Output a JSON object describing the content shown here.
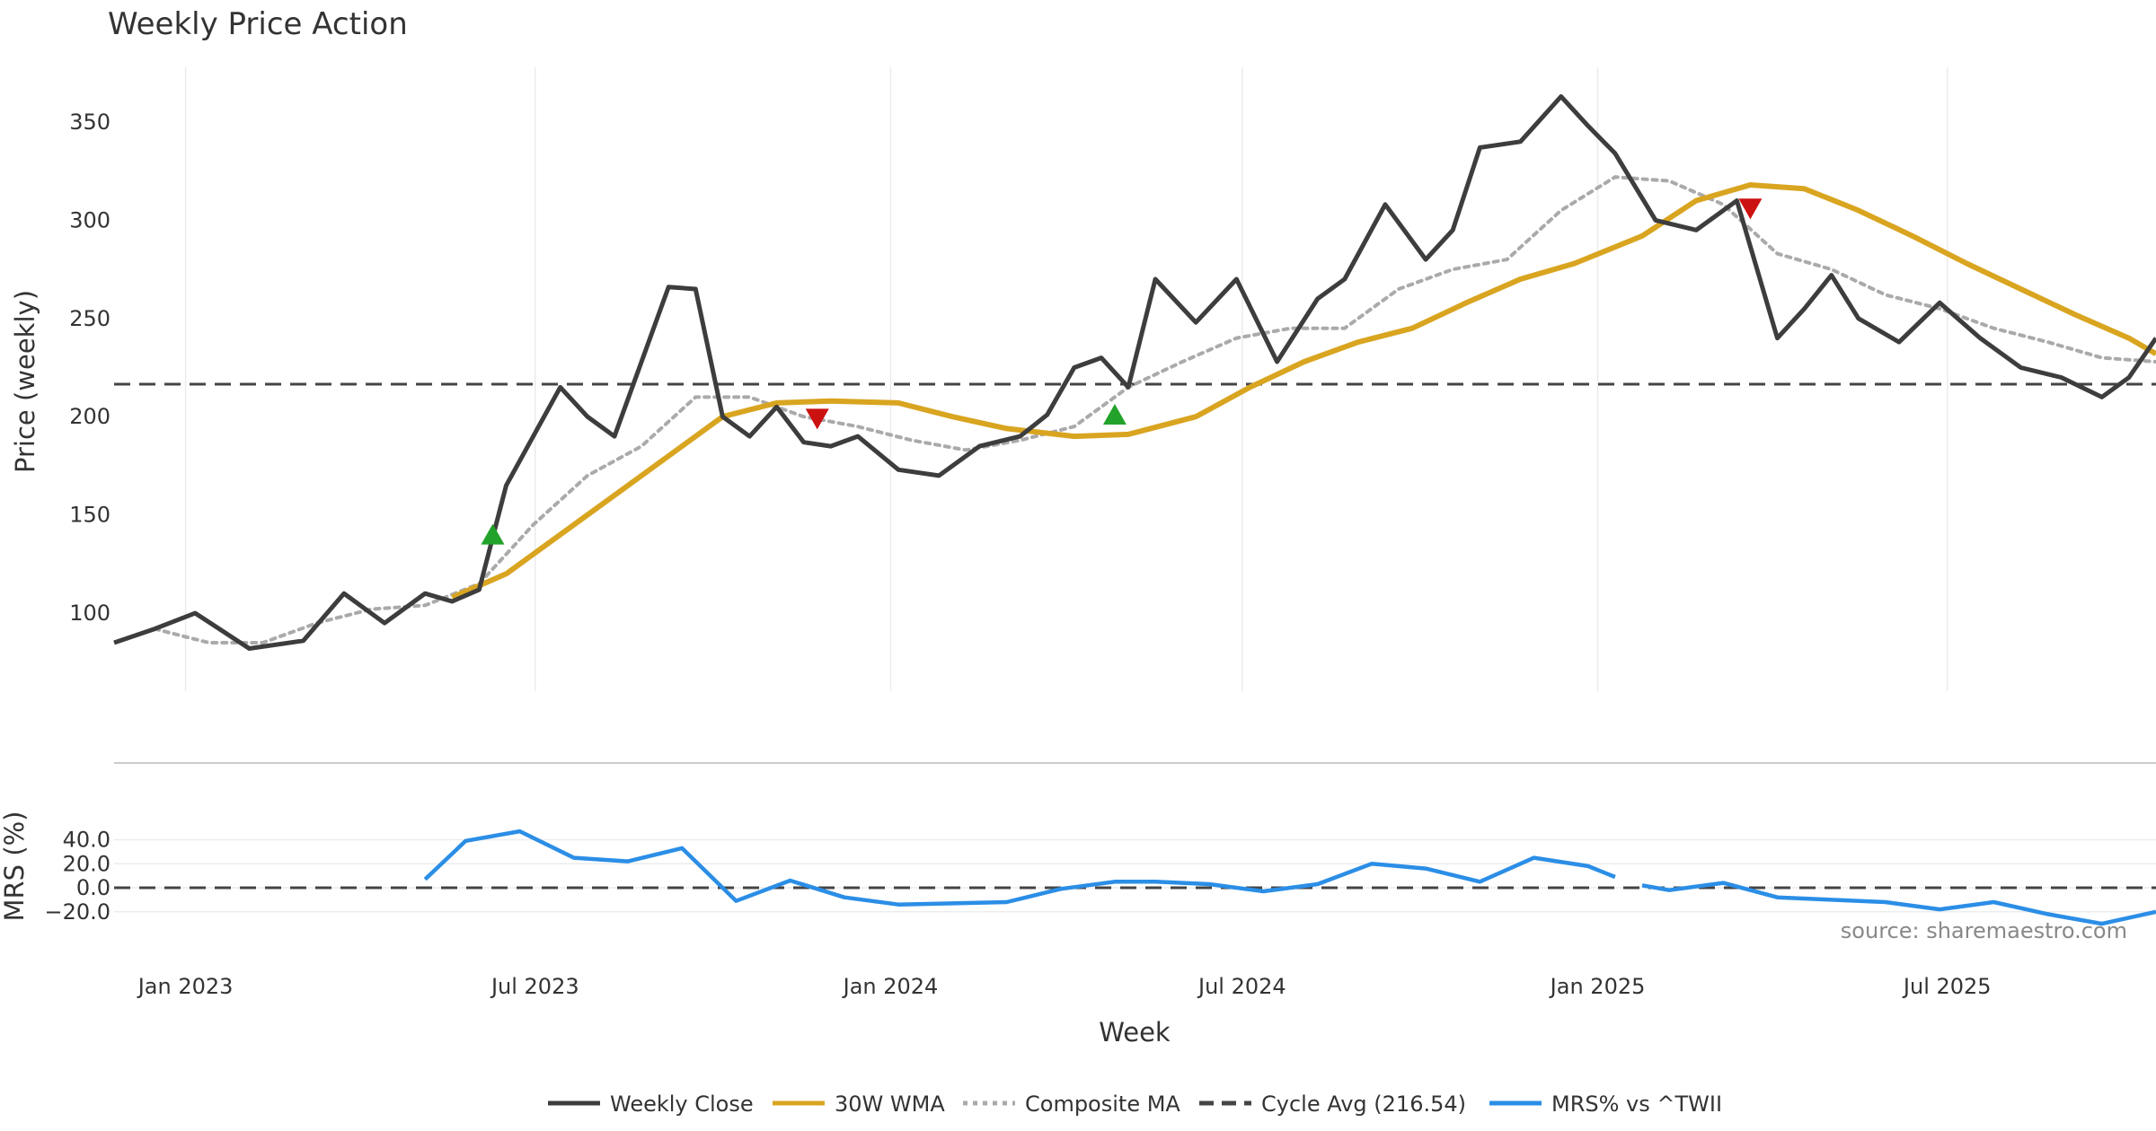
{
  "chart_data": {
    "type": "line",
    "title": "Weekly Price Action",
    "xlabel": "Week",
    "x_ticks": [
      "Jan 2023",
      "Jul 2023",
      "Jan 2024",
      "Jul 2024",
      "Jan 2025",
      "Jul 2025"
    ],
    "source": "source: sharemaestro.com",
    "price_panel": {
      "ylabel": "Price (weekly)",
      "ylim": [
        65,
        380
      ],
      "yticks": [
        100,
        150,
        200,
        250,
        300,
        350
      ],
      "grid": "vertical",
      "cycle_avg": 216.54,
      "series": [
        {
          "name": "Weekly Close",
          "color": "#3d3d3d",
          "style": "solid",
          "x": [
            "2022-11-25",
            "2022-12-16",
            "2023-01-06",
            "2023-02-03",
            "2023-03-03",
            "2023-03-24",
            "2023-04-14",
            "2023-05-05",
            "2023-05-19",
            "2023-06-02",
            "2023-06-16",
            "2023-06-30",
            "2023-07-14",
            "2023-07-28",
            "2023-08-11",
            "2023-08-25",
            "2023-09-08",
            "2023-09-22",
            "2023-10-06",
            "2023-10-20",
            "2023-11-03",
            "2023-11-17",
            "2023-12-01",
            "2023-12-15",
            "2024-01-05",
            "2024-01-26",
            "2024-02-16",
            "2024-03-08",
            "2024-03-22",
            "2024-04-05",
            "2024-04-19",
            "2024-05-03",
            "2024-05-17",
            "2024-06-07",
            "2024-06-28",
            "2024-07-19",
            "2024-08-09",
            "2024-08-23",
            "2024-09-13",
            "2024-10-04",
            "2024-10-18",
            "2024-11-01",
            "2024-11-22",
            "2024-12-13",
            "2024-12-27",
            "2025-01-10",
            "2025-01-31",
            "2025-02-21",
            "2025-03-14",
            "2025-04-04",
            "2025-04-18",
            "2025-05-02",
            "2025-05-16",
            "2025-06-06",
            "2025-06-27",
            "2025-07-18",
            "2025-08-08",
            "2025-08-29",
            "2025-09-19",
            "2025-10-03",
            "2025-10-17"
          ],
          "values": [
            85,
            92,
            100,
            82,
            86,
            110,
            95,
            110,
            106,
            112,
            165,
            190,
            215,
            200,
            190,
            228,
            266,
            265,
            200,
            190,
            205,
            187,
            185,
            190,
            173,
            170,
            185,
            190,
            201,
            225,
            230,
            215,
            270,
            248,
            270,
            228,
            260,
            270,
            308,
            280,
            295,
            337,
            340,
            363,
            348,
            334,
            300,
            295,
            310,
            240,
            255,
            272,
            250,
            238,
            258,
            240,
            225,
            220,
            210,
            220,
            240
          ]
        },
        {
          "name": "30W WMA",
          "color": "#d9a520",
          "style": "solid",
          "x": [
            "2023-05-19",
            "2023-06-16",
            "2023-07-14",
            "2023-08-11",
            "2023-09-08",
            "2023-10-06",
            "2023-11-03",
            "2023-12-01",
            "2024-01-05",
            "2024-02-02",
            "2024-03-01",
            "2024-04-05",
            "2024-05-03",
            "2024-06-07",
            "2024-07-05",
            "2024-08-02",
            "2024-08-30",
            "2024-09-27",
            "2024-10-25",
            "2024-11-22",
            "2024-12-20",
            "2025-01-24",
            "2025-02-21",
            "2025-03-21",
            "2025-04-18",
            "2025-05-16",
            "2025-06-13",
            "2025-07-11",
            "2025-08-08",
            "2025-09-05",
            "2025-10-03",
            "2025-10-17"
          ],
          "values": [
            108,
            120,
            140,
            160,
            180,
            200,
            207,
            208,
            207,
            200,
            194,
            190,
            191,
            200,
            215,
            228,
            238,
            245,
            258,
            270,
            278,
            292,
            310,
            318,
            316,
            305,
            292,
            278,
            265,
            252,
            240,
            232
          ]
        },
        {
          "name": "Composite MA",
          "color": "#aaaaaa",
          "style": "dotted",
          "x": [
            "2022-12-16",
            "2023-01-13",
            "2023-02-10",
            "2023-03-10",
            "2023-04-07",
            "2023-05-05",
            "2023-06-02",
            "2023-06-30",
            "2023-07-28",
            "2023-08-25",
            "2023-09-22",
            "2023-10-20",
            "2023-11-17",
            "2023-12-15",
            "2024-01-12",
            "2024-02-09",
            "2024-03-08",
            "2024-04-05",
            "2024-05-03",
            "2024-05-31",
            "2024-06-28",
            "2024-07-26",
            "2024-08-23",
            "2024-09-20",
            "2024-10-18",
            "2024-11-15",
            "2024-12-13",
            "2025-01-10",
            "2025-02-07",
            "2025-03-07",
            "2025-04-04",
            "2025-05-02",
            "2025-05-30",
            "2025-06-27",
            "2025-07-25",
            "2025-08-22",
            "2025-09-19",
            "2025-10-17"
          ],
          "values": [
            92,
            85,
            85,
            95,
            102,
            104,
            115,
            145,
            170,
            185,
            210,
            210,
            200,
            195,
            188,
            183,
            188,
            195,
            215,
            228,
            240,
            245,
            245,
            265,
            275,
            280,
            305,
            322,
            320,
            308,
            283,
            275,
            262,
            255,
            245,
            238,
            230,
            228
          ]
        }
      ],
      "markers": [
        {
          "type": "buy",
          "shape": "triangle-up",
          "color": "#22a22a",
          "x": "2023-06-09",
          "value": 140
        },
        {
          "type": "sell",
          "shape": "triangle-down",
          "color": "#cc1111",
          "x": "2023-11-24",
          "value": 199
        },
        {
          "type": "buy",
          "shape": "triangle-up",
          "color": "#22a22a",
          "x": "2024-04-26",
          "value": 201
        },
        {
          "type": "sell",
          "shape": "triangle-down",
          "color": "#cc1111",
          "x": "2025-03-21",
          "value": 306
        }
      ]
    },
    "mrs_panel": {
      "ylabel": "MRS (%)",
      "ylim": [
        -30,
        52
      ],
      "yticks": [
        40.0,
        20.0,
        0.0,
        -20.0
      ],
      "tick_labels": [
        "40.0",
        "20.0",
        "0.0",
        "−20.0"
      ],
      "zero_line": 0,
      "series": [
        {
          "name": "MRS% vs ^TWII",
          "color": "#2b8ee6",
          "style": "solid",
          "segments": [
            {
              "x": [
                "2023-05-05",
                "2023-05-26",
                "2023-06-23",
                "2023-07-21",
                "2023-08-18",
                "2023-09-15",
                "2023-10-13",
                "2023-11-10",
                "2023-12-08",
                "2024-01-05",
                "2024-02-02",
                "2024-03-01",
                "2024-03-29",
                "2024-04-26",
                "2024-05-17",
                "2024-06-14",
                "2024-07-12",
                "2024-08-09",
                "2024-09-06",
                "2024-10-04",
                "2024-11-01",
                "2024-11-29",
                "2024-12-27",
                "2025-01-10"
              ],
              "values": [
                7,
                39,
                47,
                25,
                22,
                33,
                -11,
                6,
                -8,
                -14,
                -13,
                -12,
                -1,
                5,
                5,
                3,
                -3,
                3,
                20,
                16,
                5,
                25,
                18,
                9
              ]
            },
            {
              "x": [
                "2025-01-24",
                "2025-02-07",
                "2025-03-07",
                "2025-04-04",
                "2025-05-02",
                "2025-05-30",
                "2025-06-27",
                "2025-07-25",
                "2025-08-22",
                "2025-09-19",
                "2025-10-17"
              ],
              "values": [
                2,
                -2,
                4,
                -8,
                -10,
                -12,
                -18,
                -12,
                -22,
                -30,
                -20
              ]
            }
          ]
        }
      ]
    },
    "legend": {
      "placement": "bottom-center",
      "items": [
        {
          "label": "Weekly Close",
          "color": "#3d3d3d",
          "style": "solid"
        },
        {
          "label": "30W WMA",
          "color": "#d9a520",
          "style": "solid"
        },
        {
          "label": "Composite MA",
          "color": "#aaaaaa",
          "style": "dotted"
        },
        {
          "label": "Cycle Avg (216.54)",
          "color": "#444444",
          "style": "dashed"
        },
        {
          "label": "MRS% vs ^TWII",
          "color": "#2b8ee6",
          "style": "solid"
        }
      ]
    }
  }
}
